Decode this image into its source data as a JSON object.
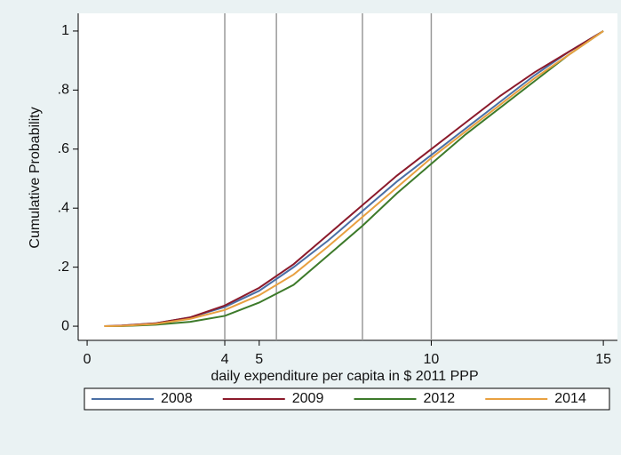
{
  "chart_data": {
    "type": "line",
    "xlabel": "daily expenditure per capita in $ 2011 PPP",
    "ylabel": "Cumulative Probability",
    "x": [
      0.5,
      1,
      2,
      3,
      4,
      5,
      6,
      7,
      8,
      9,
      10,
      11,
      12,
      13,
      14,
      15
    ],
    "series": [
      {
        "name": "2008",
        "color": "#4a6fa5",
        "values": [
          0,
          0.002,
          0.01,
          0.03,
          0.065,
          0.12,
          0.2,
          0.29,
          0.39,
          0.49,
          0.58,
          0.67,
          0.76,
          0.85,
          0.93,
          1
        ]
      },
      {
        "name": "2009",
        "color": "#8b1a2b",
        "values": [
          0,
          0.002,
          0.01,
          0.03,
          0.07,
          0.13,
          0.21,
          0.31,
          0.41,
          0.51,
          0.6,
          0.69,
          0.78,
          0.86,
          0.93,
          1
        ]
      },
      {
        "name": "2012",
        "color": "#3d7a2a",
        "values": [
          0,
          0,
          0.005,
          0.015,
          0.035,
          0.08,
          0.14,
          0.24,
          0.34,
          0.45,
          0.55,
          0.65,
          0.74,
          0.83,
          0.92,
          1
        ]
      },
      {
        "name": "2014",
        "color": "#e8a040",
        "values": [
          0,
          0.001,
          0.008,
          0.025,
          0.055,
          0.105,
          0.175,
          0.27,
          0.37,
          0.47,
          0.57,
          0.66,
          0.75,
          0.84,
          0.92,
          1
        ]
      }
    ],
    "xlim": [
      -0.26,
      15.41
    ],
    "ylim": [
      -0.048,
      1.06
    ],
    "xticks": [
      0,
      4,
      5,
      10,
      15
    ],
    "yticks": [
      0,
      {
        "value": 0.2,
        "label": ".2"
      },
      {
        "value": 0.4,
        "label": ".4"
      },
      {
        "value": 0.6,
        "label": ".6"
      },
      {
        "value": 0.8,
        "label": ".8"
      },
      1
    ],
    "xlines": [
      4,
      5.5,
      8,
      10
    ],
    "legend": "bottom"
  }
}
